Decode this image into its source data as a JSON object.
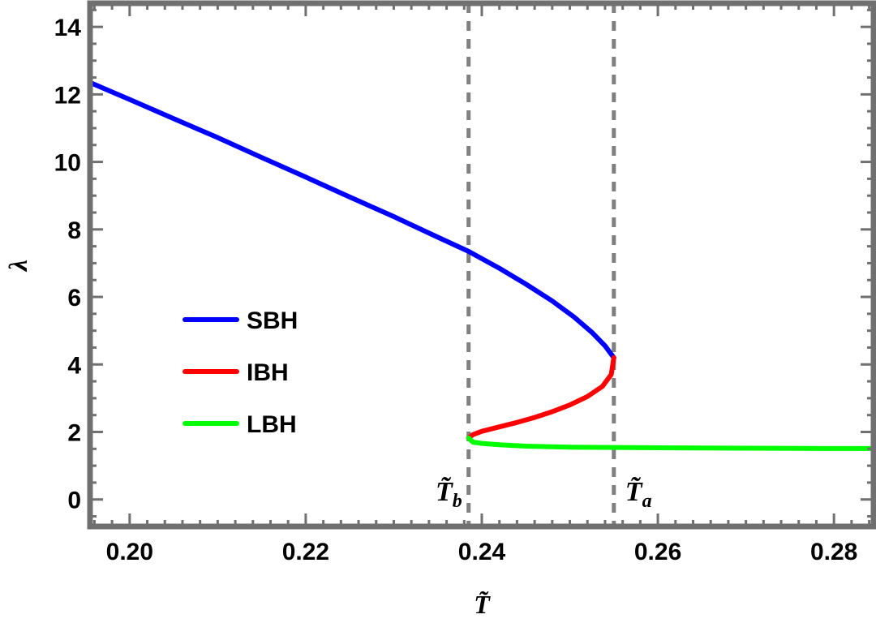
{
  "chart_data": {
    "type": "line",
    "xlabel": "T̃",
    "ylabel": "λ",
    "xlim": [
      0.1955,
      0.2845
    ],
    "ylim": [
      -0.8,
      14.7
    ],
    "xticks": [
      0.2,
      0.22,
      0.24,
      0.26,
      0.28
    ],
    "xtick_labels": [
      "0.20",
      "0.22",
      "0.24",
      "0.26",
      "0.28"
    ],
    "yticks": [
      0,
      2,
      4,
      6,
      8,
      10,
      12,
      14
    ],
    "ytick_labels": [
      "0",
      "2",
      "4",
      "6",
      "8",
      "10",
      "12",
      "14"
    ],
    "grid": false,
    "legend_placement": "left-middle",
    "series": [
      {
        "name": "SBH",
        "color": "#0000ff",
        "points": [
          [
            0.1955,
            12.35
          ],
          [
            0.2,
            11.85
          ],
          [
            0.205,
            11.28
          ],
          [
            0.21,
            10.72
          ],
          [
            0.215,
            10.13
          ],
          [
            0.22,
            9.55
          ],
          [
            0.225,
            8.96
          ],
          [
            0.23,
            8.38
          ],
          [
            0.235,
            7.77
          ],
          [
            0.2385,
            7.35
          ],
          [
            0.242,
            6.85
          ],
          [
            0.245,
            6.38
          ],
          [
            0.248,
            5.88
          ],
          [
            0.2505,
            5.4
          ],
          [
            0.2525,
            4.95
          ],
          [
            0.254,
            4.55
          ],
          [
            0.255,
            4.2
          ]
        ]
      },
      {
        "name": "IBH",
        "color": "#ff0000",
        "points": [
          [
            0.255,
            4.2
          ],
          [
            0.2547,
            3.7
          ],
          [
            0.2537,
            3.35
          ],
          [
            0.252,
            3.05
          ],
          [
            0.25,
            2.8
          ],
          [
            0.248,
            2.6
          ],
          [
            0.246,
            2.43
          ],
          [
            0.244,
            2.28
          ],
          [
            0.242,
            2.15
          ],
          [
            0.24,
            2.02
          ],
          [
            0.239,
            1.92
          ],
          [
            0.2385,
            1.82
          ]
        ]
      },
      {
        "name": "LBH",
        "color": "#00ff00",
        "points": [
          [
            0.2385,
            1.82
          ],
          [
            0.239,
            1.7
          ],
          [
            0.24,
            1.66
          ],
          [
            0.242,
            1.62
          ],
          [
            0.245,
            1.58
          ],
          [
            0.25,
            1.55
          ],
          [
            0.255,
            1.54
          ],
          [
            0.26,
            1.53
          ],
          [
            0.27,
            1.52
          ],
          [
            0.28,
            1.51
          ],
          [
            0.2845,
            1.51
          ]
        ]
      }
    ],
    "vlines": [
      {
        "x": 0.2385,
        "label": "T̃",
        "subscript": "b"
      },
      {
        "x": 0.255,
        "label": "T̃",
        "subscript": "a"
      }
    ]
  }
}
